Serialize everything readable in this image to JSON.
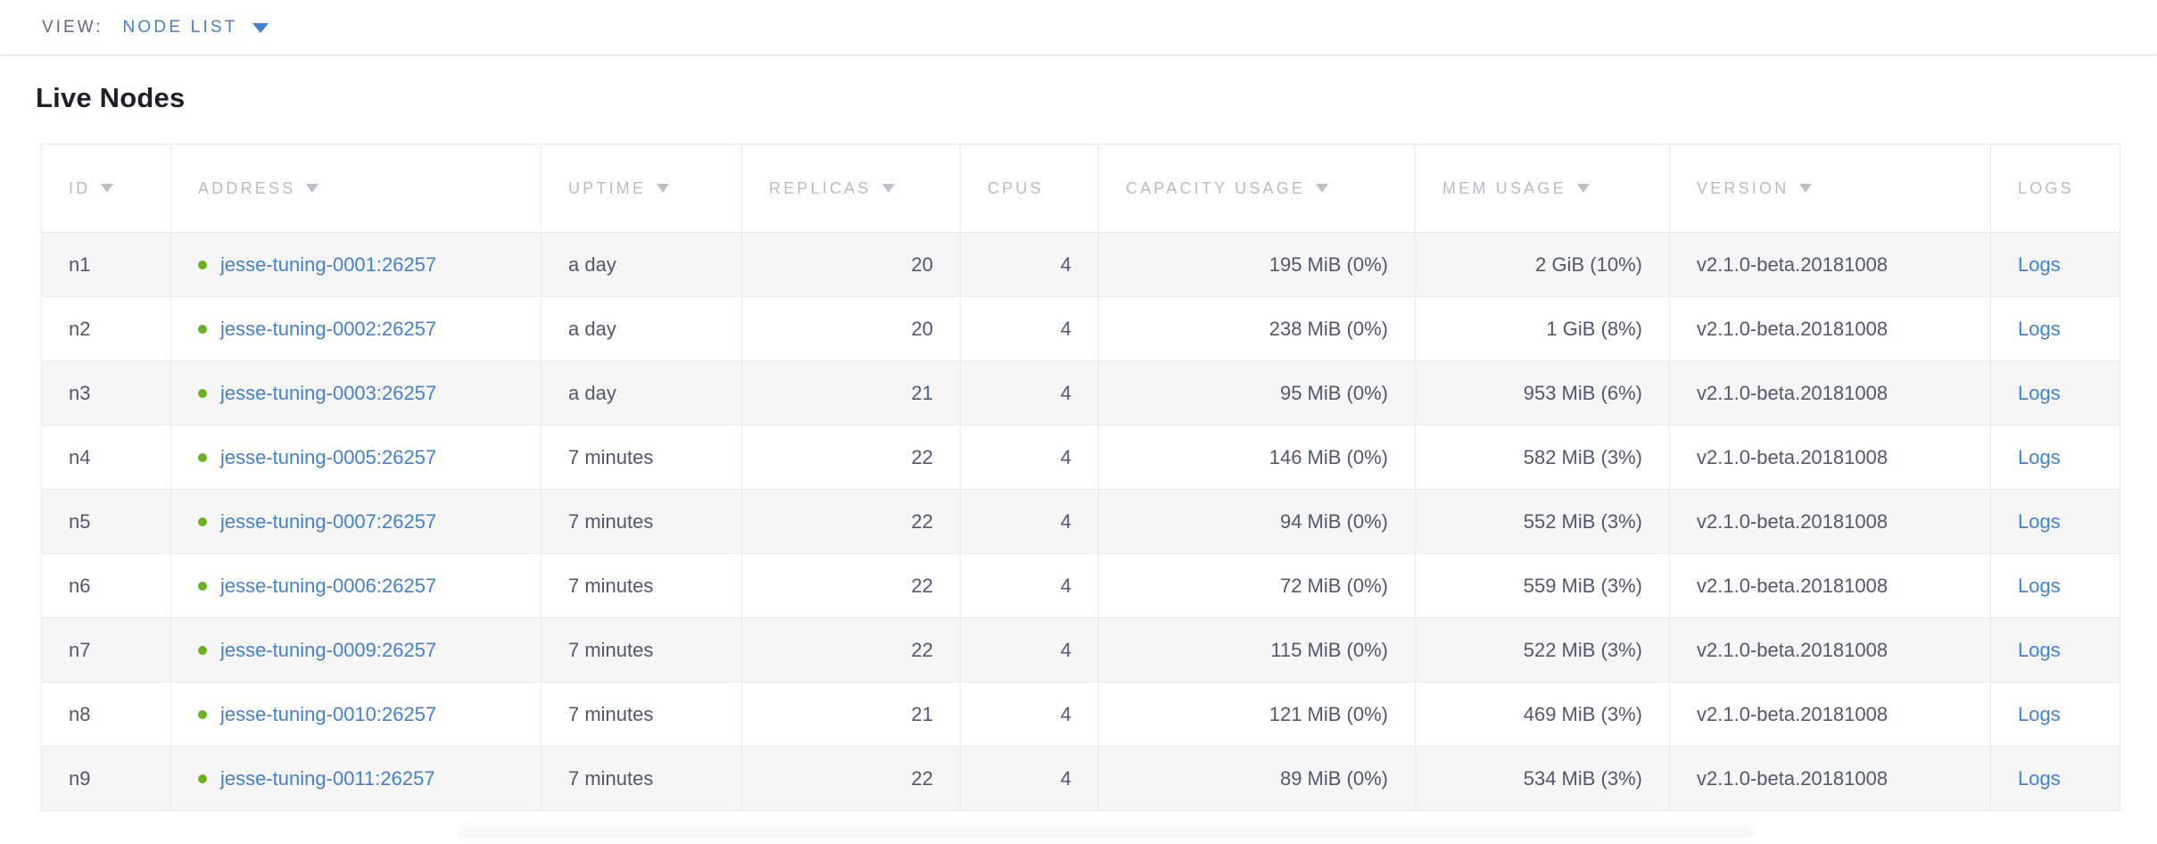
{
  "colors": {
    "accent_blue": "#4280d6",
    "healthy_green": "#69b320",
    "header_gray": "#b7bbc2",
    "body_text": "#50596b",
    "row_stripe": "#f6f6f6",
    "border": "#e9e9e9"
  },
  "view_bar": {
    "label": "VIEW:",
    "selected_view": "NODE LIST",
    "dropdown_icon": "caret-down-icon"
  },
  "page": {
    "title": "Live Nodes"
  },
  "nodes_table": {
    "columns": [
      {
        "key": "id",
        "label": "ID",
        "sortable": true,
        "align": "left"
      },
      {
        "key": "address",
        "label": "ADDRESS",
        "sortable": true,
        "align": "left"
      },
      {
        "key": "uptime",
        "label": "UPTIME",
        "sortable": true,
        "align": "left"
      },
      {
        "key": "replicas",
        "label": "REPLICAS",
        "sortable": true,
        "align": "right"
      },
      {
        "key": "cpus",
        "label": "CPUS",
        "sortable": false,
        "align": "right"
      },
      {
        "key": "capacity_usage",
        "label": "CAPACITY USAGE",
        "sortable": true,
        "align": "right"
      },
      {
        "key": "mem_usage",
        "label": "MEM USAGE",
        "sortable": true,
        "align": "right"
      },
      {
        "key": "version",
        "label": "VERSION",
        "sortable": true,
        "align": "left"
      },
      {
        "key": "logs",
        "label": "LOGS",
        "sortable": false,
        "align": "left"
      }
    ],
    "rows": [
      {
        "id": "n1",
        "status": "healthy",
        "address": "jesse-tuning-0001:26257",
        "uptime": "a day",
        "replicas": "20",
        "cpus": "4",
        "capacity_usage": "195 MiB (0%)",
        "mem_usage": "2 GiB (10%)",
        "version": "v2.1.0-beta.20181008",
        "logs": "Logs"
      },
      {
        "id": "n2",
        "status": "healthy",
        "address": "jesse-tuning-0002:26257",
        "uptime": "a day",
        "replicas": "20",
        "cpus": "4",
        "capacity_usage": "238 MiB (0%)",
        "mem_usage": "1 GiB (8%)",
        "version": "v2.1.0-beta.20181008",
        "logs": "Logs"
      },
      {
        "id": "n3",
        "status": "healthy",
        "address": "jesse-tuning-0003:26257",
        "uptime": "a day",
        "replicas": "21",
        "cpus": "4",
        "capacity_usage": "95 MiB (0%)",
        "mem_usage": "953 MiB (6%)",
        "version": "v2.1.0-beta.20181008",
        "logs": "Logs"
      },
      {
        "id": "n4",
        "status": "healthy",
        "address": "jesse-tuning-0005:26257",
        "uptime": "7 minutes",
        "replicas": "22",
        "cpus": "4",
        "capacity_usage": "146 MiB (0%)",
        "mem_usage": "582 MiB (3%)",
        "version": "v2.1.0-beta.20181008",
        "logs": "Logs"
      },
      {
        "id": "n5",
        "status": "healthy",
        "address": "jesse-tuning-0007:26257",
        "uptime": "7 minutes",
        "replicas": "22",
        "cpus": "4",
        "capacity_usage": "94 MiB (0%)",
        "mem_usage": "552 MiB (3%)",
        "version": "v2.1.0-beta.20181008",
        "logs": "Logs"
      },
      {
        "id": "n6",
        "status": "healthy",
        "address": "jesse-tuning-0006:26257",
        "uptime": "7 minutes",
        "replicas": "22",
        "cpus": "4",
        "capacity_usage": "72 MiB (0%)",
        "mem_usage": "559 MiB (3%)",
        "version": "v2.1.0-beta.20181008",
        "logs": "Logs"
      },
      {
        "id": "n7",
        "status": "healthy",
        "address": "jesse-tuning-0009:26257",
        "uptime": "7 minutes",
        "replicas": "22",
        "cpus": "4",
        "capacity_usage": "115 MiB (0%)",
        "mem_usage": "522 MiB (3%)",
        "version": "v2.1.0-beta.20181008",
        "logs": "Logs"
      },
      {
        "id": "n8",
        "status": "healthy",
        "address": "jesse-tuning-0010:26257",
        "uptime": "7 minutes",
        "replicas": "21",
        "cpus": "4",
        "capacity_usage": "121 MiB (0%)",
        "mem_usage": "469 MiB (3%)",
        "version": "v2.1.0-beta.20181008",
        "logs": "Logs"
      },
      {
        "id": "n9",
        "status": "healthy",
        "address": "jesse-tuning-0011:26257",
        "uptime": "7 minutes",
        "replicas": "22",
        "cpus": "4",
        "capacity_usage": "89 MiB (0%)",
        "mem_usage": "534 MiB (3%)",
        "version": "v2.1.0-beta.20181008",
        "logs": "Logs"
      }
    ]
  }
}
